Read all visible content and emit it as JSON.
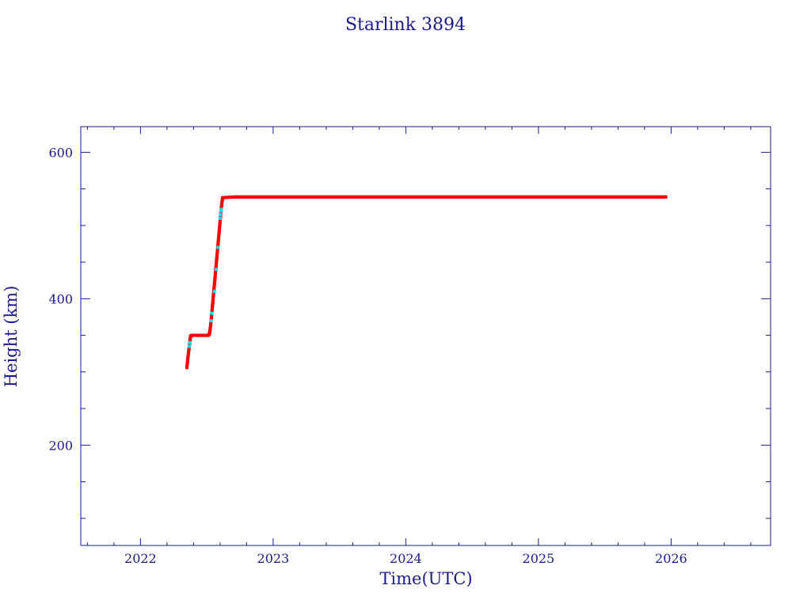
{
  "chart_data": {
    "type": "scatter",
    "title": "Starlink 3894",
    "xlabel": "Time(UTC)",
    "ylabel": "Height (km)",
    "xlim": [
      2021.55,
      2026.75
    ],
    "ylim": [
      63,
      635
    ],
    "x_ticks": [
      2022,
      2023,
      2024,
      2025,
      2026
    ],
    "x_tick_labels": [
      "2022",
      "2023",
      "2024",
      "2025",
      "2026"
    ],
    "x_minor_step": 0.2,
    "y_ticks": [
      200,
      400,
      600
    ],
    "y_tick_labels": [
      "200",
      "400",
      "600"
    ],
    "y_minor_step": 50,
    "grid": false,
    "legend": "none",
    "colors": {
      "axes": "#1a1a8c",
      "text": "#1a1a8c",
      "series_main": "#ff0000",
      "series_alt": "#00e5ee",
      "background": "#ffffff"
    },
    "series": [
      {
        "color": "#ff0000",
        "points": [
          [
            2022.35,
            306
          ],
          [
            2022.352,
            310
          ],
          [
            2022.355,
            315
          ],
          [
            2022.358,
            320
          ],
          [
            2022.362,
            326
          ],
          [
            2022.366,
            332
          ],
          [
            2022.37,
            338
          ],
          [
            2022.374,
            344
          ],
          [
            2022.378,
            349
          ],
          [
            2022.39,
            350
          ],
          [
            2022.41,
            350
          ],
          [
            2022.43,
            350
          ],
          [
            2022.45,
            350
          ],
          [
            2022.47,
            350
          ],
          [
            2022.49,
            350
          ],
          [
            2022.51,
            350
          ],
          [
            2022.52,
            352
          ],
          [
            2022.525,
            358
          ],
          [
            2022.53,
            366
          ],
          [
            2022.535,
            375
          ],
          [
            2022.54,
            385
          ],
          [
            2022.545,
            395
          ],
          [
            2022.55,
            405
          ],
          [
            2022.555,
            415
          ],
          [
            2022.56,
            425
          ],
          [
            2022.565,
            435
          ],
          [
            2022.57,
            445
          ],
          [
            2022.575,
            455
          ],
          [
            2022.58,
            465
          ],
          [
            2022.585,
            475
          ],
          [
            2022.59,
            485
          ],
          [
            2022.595,
            495
          ],
          [
            2022.6,
            505
          ],
          [
            2022.605,
            515
          ],
          [
            2022.61,
            525
          ],
          [
            2022.615,
            533
          ],
          [
            2022.62,
            538
          ],
          [
            2022.7,
            539
          ],
          [
            2022.8,
            539
          ],
          [
            2022.9,
            539
          ],
          [
            2023.0,
            539
          ],
          [
            2023.1,
            539
          ],
          [
            2023.2,
            539
          ],
          [
            2023.3,
            539
          ],
          [
            2023.4,
            539
          ],
          [
            2023.5,
            539
          ],
          [
            2023.6,
            539
          ],
          [
            2023.7,
            539
          ],
          [
            2023.8,
            539
          ],
          [
            2023.9,
            539
          ],
          [
            2024.0,
            539
          ],
          [
            2024.1,
            539
          ],
          [
            2024.2,
            539
          ],
          [
            2024.3,
            539
          ],
          [
            2024.4,
            539
          ],
          [
            2024.5,
            539
          ],
          [
            2024.6,
            539
          ],
          [
            2024.7,
            539
          ],
          [
            2024.8,
            539
          ],
          [
            2024.9,
            539
          ],
          [
            2025.0,
            539
          ],
          [
            2025.1,
            539
          ],
          [
            2025.2,
            539
          ],
          [
            2025.3,
            539
          ],
          [
            2025.4,
            539
          ],
          [
            2025.5,
            539
          ],
          [
            2025.6,
            539
          ],
          [
            2025.7,
            539
          ],
          [
            2025.8,
            539
          ],
          [
            2025.9,
            539
          ],
          [
            2025.96,
            539
          ]
        ]
      },
      {
        "color": "#00e5ee",
        "points": [
          [
            2022.368,
            335
          ],
          [
            2022.372,
            340
          ],
          [
            2022.532,
            370
          ],
          [
            2022.538,
            380
          ],
          [
            2022.558,
            410
          ],
          [
            2022.572,
            440
          ],
          [
            2022.585,
            470
          ],
          [
            2022.6,
            510
          ],
          [
            2022.603,
            515
          ],
          [
            2022.606,
            520
          ],
          [
            2022.609,
            522
          ]
        ]
      }
    ]
  }
}
